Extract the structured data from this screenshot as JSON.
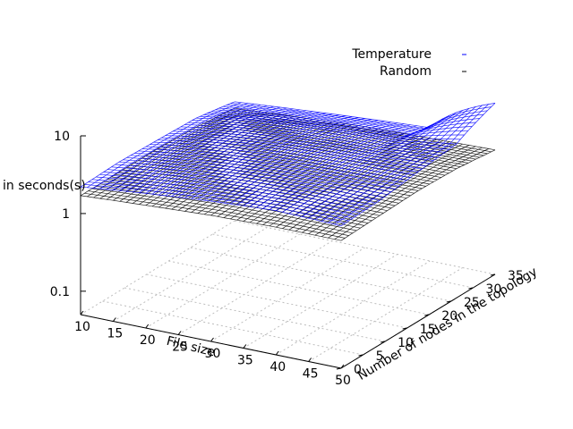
{
  "chart_data": {
    "type": "surface3d",
    "title": "",
    "xlabel": "File size",
    "ylabel": "Number of nodes in the topology",
    "zlabel": "Time in seconds(s)",
    "x_ticks": [
      "10",
      "15",
      "20",
      "25",
      "30",
      "35",
      "40",
      "45",
      "50"
    ],
    "y_ticks": [
      "0",
      "5",
      "10",
      "15",
      "20",
      "25",
      "30",
      "35"
    ],
    "z_ticks": [
      "10",
      "1",
      "0.1"
    ],
    "xlim": [
      10,
      50
    ],
    "ylim": [
      0,
      35
    ],
    "zlim": [
      0.05,
      10
    ],
    "zscale": "log",
    "grid": true,
    "legend_position": "top-right",
    "series": [
      {
        "name": "Temperature",
        "color": "#0000ff",
        "x": [
          10,
          20,
          30,
          40,
          50
        ],
        "y": [
          0,
          8.75,
          17.5,
          26.25,
          35
        ],
        "z": [
          [
            2.2,
            2.7,
            3.2,
            3.6,
            3.4
          ],
          [
            2.3,
            2.9,
            3.5,
            3.8,
            3.6
          ],
          [
            2.2,
            3.0,
            3.6,
            3.9,
            4.2
          ],
          [
            2.1,
            2.8,
            3.3,
            3.5,
            4.8
          ],
          [
            1.7,
            2.0,
            2.3,
            2.6,
            8.0
          ]
        ]
      },
      {
        "name": "Random",
        "color": "#000000",
        "x": [
          10,
          20,
          30,
          40,
          50
        ],
        "y": [
          0,
          8.75,
          17.5,
          26.25,
          35
        ],
        "z": [
          [
            1.7,
            1.9,
            2.1,
            2.2,
            2.2
          ],
          [
            1.7,
            2.0,
            2.2,
            2.3,
            2.3
          ],
          [
            1.7,
            2.0,
            2.2,
            2.3,
            2.4
          ],
          [
            1.6,
            1.9,
            2.1,
            2.2,
            2.3
          ],
          [
            1.4,
            1.6,
            1.8,
            1.9,
            2.0
          ]
        ]
      }
    ]
  }
}
